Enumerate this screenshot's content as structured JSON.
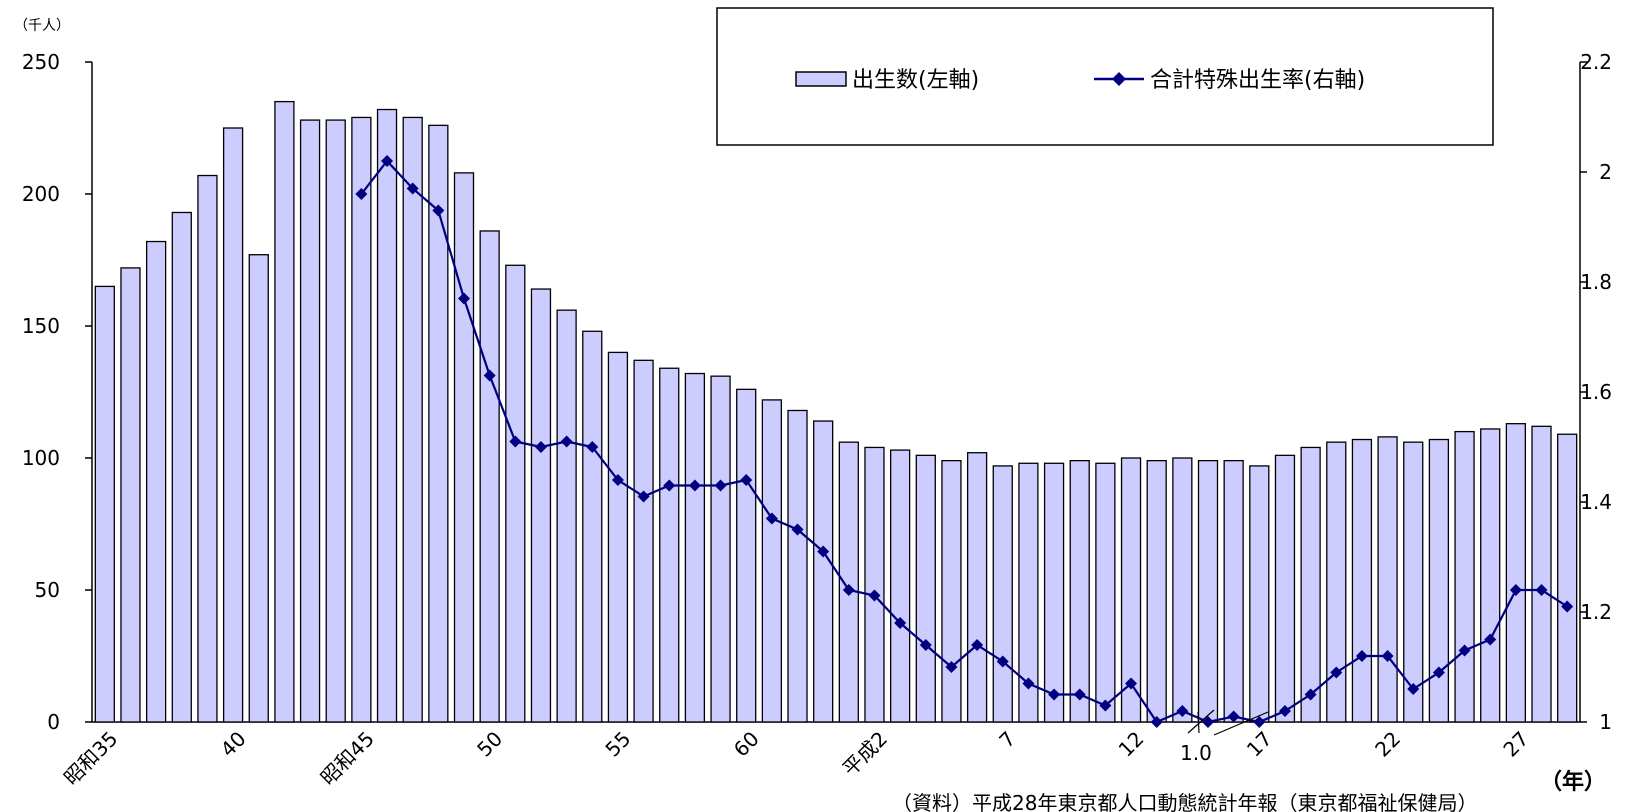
{
  "chart_data": {
    "type": "bar",
    "left_unit": "（千人）",
    "x_unit": "（年）",
    "source_note": "（資料）平成28年東京都人口動態統計年報（東京都福祉保健局）",
    "left_axis": {
      "min": 0,
      "max": 250,
      "ticks": [
        0,
        50,
        100,
        150,
        200,
        250
      ]
    },
    "right_axis": {
      "min": 1,
      "max": 2.2,
      "ticks": [
        "1",
        "1.2",
        "1.4",
        "1.6",
        "1.8",
        "2",
        "2.2"
      ]
    },
    "x_tick_labels": [
      {
        "index": 0,
        "label": "昭和35"
      },
      {
        "index": 5,
        "label": "40"
      },
      {
        "index": 10,
        "label": "昭和45"
      },
      {
        "index": 15,
        "label": "50"
      },
      {
        "index": 20,
        "label": "55"
      },
      {
        "index": 25,
        "label": "60"
      },
      {
        "index": 30,
        "label": "平成2"
      },
      {
        "index": 35,
        "label": "7"
      },
      {
        "index": 40,
        "label": "12"
      },
      {
        "index": 45,
        "label": "17"
      },
      {
        "index": 50,
        "label": "22"
      },
      {
        "index": 55,
        "label": "27"
      }
    ],
    "annotation": "1.0",
    "legend": [
      "出生数(左軸)",
      "合計特殊出生率(右軸)"
    ],
    "bar_color": "#ccccff",
    "line_color": "#000080",
    "series": [
      {
        "name": "出生数(左軸)",
        "type": "bar",
        "values": [
          165,
          172,
          182,
          193,
          207,
          225,
          177,
          235,
          228,
          228,
          229,
          232,
          229,
          226,
          208,
          186,
          173,
          164,
          156,
          148,
          140,
          137,
          134,
          132,
          131,
          126,
          122,
          118,
          114,
          106,
          104,
          103,
          101,
          99,
          102,
          97,
          98,
          98,
          99,
          98,
          100,
          99,
          100,
          99,
          99,
          97,
          101,
          104,
          106,
          107,
          108,
          106,
          107,
          110,
          111,
          113,
          112,
          109
        ]
      },
      {
        "name": "合計特殊出生率(右軸)",
        "type": "line",
        "values": [
          null,
          null,
          null,
          null,
          null,
          null,
          null,
          null,
          null,
          null,
          1.96,
          2.02,
          1.97,
          1.93,
          1.77,
          1.63,
          1.51,
          1.5,
          1.51,
          1.5,
          1.44,
          1.41,
          1.43,
          1.43,
          1.43,
          1.44,
          1.37,
          1.35,
          1.31,
          1.24,
          1.23,
          1.18,
          1.14,
          1.1,
          1.14,
          1.11,
          1.07,
          1.05,
          1.05,
          1.03,
          1.07,
          1.0,
          1.02,
          1.0,
          1.01,
          1.0,
          1.02,
          1.05,
          1.09,
          1.12,
          1.12,
          1.06,
          1.09,
          1.13,
          1.15,
          1.24,
          1.24,
          1.21
        ]
      }
    ]
  }
}
